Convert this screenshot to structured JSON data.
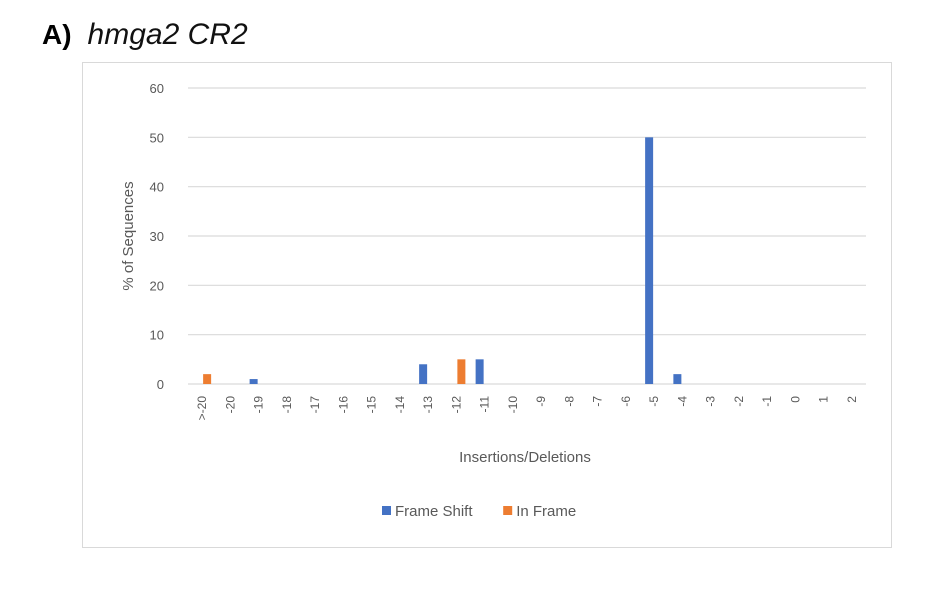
{
  "panel": {
    "letter": "A)",
    "title": "hmga2 CR2"
  },
  "chart_data": {
    "type": "bar",
    "title": "",
    "xlabel": "Insertions/Deletions",
    "ylabel": "% of Sequences",
    "ylim": [
      0,
      60
    ],
    "yticks": [
      "0",
      "10",
      "20",
      "30",
      "40",
      "50",
      "60"
    ],
    "grid": true,
    "legend_position": "bottom",
    "categories": [
      ">-20",
      "-20",
      "-19",
      "-18",
      "-17",
      "-16",
      "-15",
      "-14",
      "-13",
      "-12",
      "-11",
      "-10",
      "-9",
      "-8",
      "-7",
      "-6",
      "-5",
      "-4",
      "-3",
      "-2",
      "-1",
      "0",
      "1",
      "2"
    ],
    "series": [
      {
        "name": "Frame Shift",
        "color": "#4472c4",
        "values": [
          0,
          0,
          1,
          0,
          0,
          0,
          0,
          0,
          4,
          0,
          5,
          0,
          0,
          0,
          0,
          0,
          50,
          2,
          0,
          0,
          0,
          0,
          0,
          0
        ]
      },
      {
        "name": "In Frame",
        "color": "#ed7d31",
        "values": [
          2,
          0,
          0,
          0,
          0,
          0,
          0,
          0,
          0,
          5,
          0,
          0,
          0,
          0,
          0,
          0,
          0,
          0,
          0,
          0,
          0,
          0,
          0,
          0
        ]
      }
    ]
  }
}
